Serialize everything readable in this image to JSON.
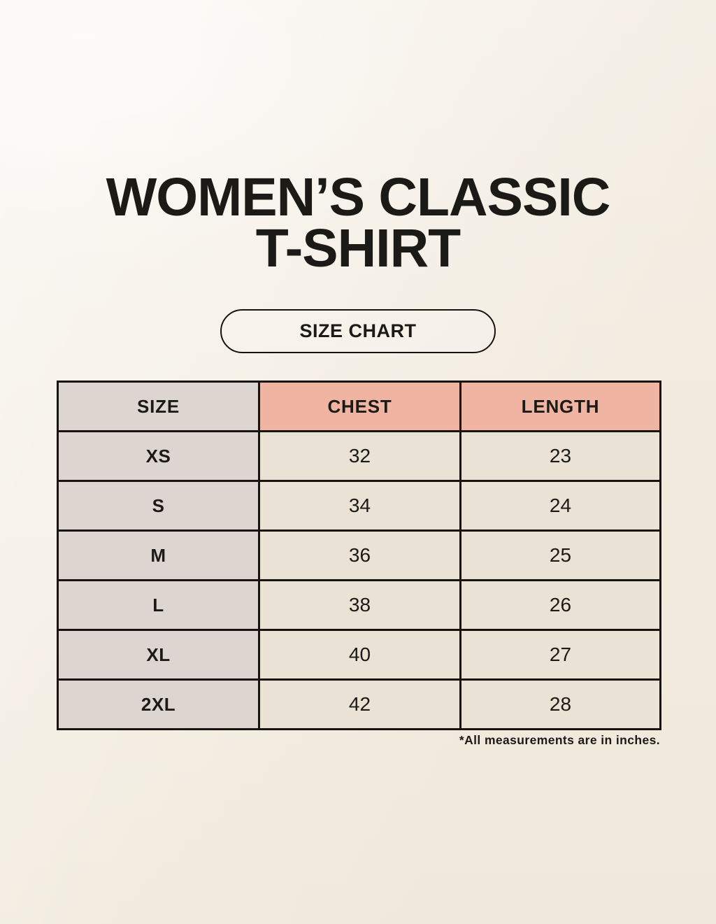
{
  "header": {
    "title_lines": [
      "WOMEN’S CLASSIC",
      "T-SHIRT"
    ],
    "badge_label": "SIZE CHART"
  },
  "chart_data": {
    "type": "table",
    "title": "WOMEN’S CLASSIC T-SHIRT SIZE CHART",
    "columns": [
      "SIZE",
      "CHEST",
      "LENGTH"
    ],
    "rows": [
      {
        "size": "XS",
        "chest": "32",
        "length": "23"
      },
      {
        "size": "S",
        "chest": "34",
        "length": "24"
      },
      {
        "size": "M",
        "chest": "36",
        "length": "25"
      },
      {
        "size": "L",
        "chest": "38",
        "length": "26"
      },
      {
        "size": "XL",
        "chest": "40",
        "length": "27"
      },
      {
        "size": "2XL",
        "chest": "42",
        "length": "28"
      }
    ],
    "units_note": "*All measurements are in inches."
  },
  "footer": {
    "note": "*All measurements are in inches."
  },
  "colors": {
    "background": "#f5f0e6",
    "header_size_bg": "#dcd5d0",
    "header_measure_bg": "#f0b5a2",
    "row_size_bg": "#dcd5d0",
    "row_data_bg": "#e9e2d5",
    "border": "#17140f",
    "text": "#1c1a17"
  }
}
